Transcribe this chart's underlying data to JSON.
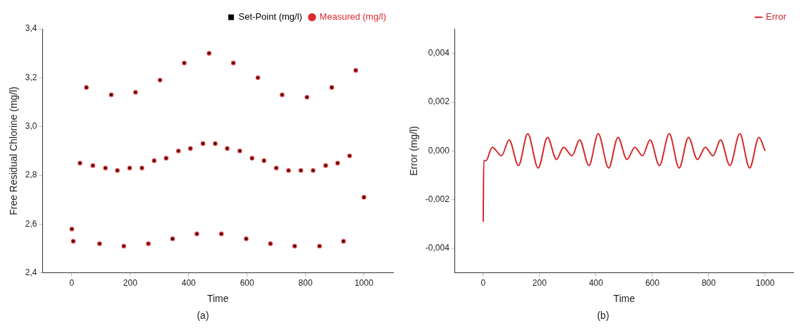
{
  "chart_data": [
    {
      "type": "scatter",
      "xlabel": "Time",
      "ylabel": "Free Residual Chlorine (mg/l)",
      "annotations": [
        "(a)"
      ],
      "legend": "top right",
      "grid": false,
      "xlim": [
        -100,
        1100
      ],
      "xticks": [
        0,
        200,
        400,
        600,
        800,
        1000
      ],
      "ylim": [
        2.4,
        3.4
      ],
      "yticks": [
        {
          "value": 2.4,
          "label": "2,4"
        },
        {
          "value": 2.6,
          "label": "2,6"
        },
        {
          "value": 2.8,
          "label": "2,8"
        },
        {
          "value": 3.0,
          "label": "3,0"
        },
        {
          "value": 3.2,
          "label": "3,2"
        },
        {
          "value": 3.4,
          "label": "3,4"
        }
      ],
      "series": [
        {
          "name": "Set-Point (mg/l)",
          "color": "#000000",
          "marker": "square",
          "x": [
            0,
            5,
            28,
            50,
            72,
            95,
            115,
            135,
            156,
            178,
            198,
            218,
            240,
            262,
            282,
            302,
            323,
            345,
            365,
            385,
            406,
            428,
            449,
            470,
            491,
            512,
            532,
            553,
            575,
            597,
            617,
            637,
            658,
            680,
            700,
            720,
            742,
            763,
            784,
            805,
            826,
            848,
            869,
            890,
            910,
            930,
            951,
            972,
            1000
          ],
          "values": [
            2.58,
            2.53,
            2.85,
            3.16,
            2.84,
            2.52,
            2.83,
            3.13,
            2.82,
            2.51,
            2.83,
            3.14,
            2.83,
            2.52,
            2.86,
            3.19,
            2.87,
            2.54,
            2.9,
            3.26,
            2.91,
            2.56,
            2.93,
            3.3,
            2.93,
            2.56,
            2.91,
            3.26,
            2.9,
            2.54,
            2.87,
            3.2,
            2.86,
            2.52,
            2.83,
            3.13,
            2.82,
            2.51,
            2.82,
            3.12,
            2.82,
            2.51,
            2.84,
            3.16,
            2.85,
            2.53,
            2.88,
            3.23,
            2.71
          ]
        },
        {
          "name": "Measured (mg/l)",
          "color": "#e0282d",
          "marker": "circle",
          "x": [
            0,
            5,
            28,
            50,
            72,
            95,
            115,
            135,
            156,
            178,
            198,
            218,
            240,
            262,
            282,
            302,
            323,
            345,
            365,
            385,
            406,
            428,
            449,
            470,
            491,
            512,
            532,
            553,
            575,
            597,
            617,
            637,
            658,
            680,
            700,
            720,
            742,
            763,
            784,
            805,
            826,
            848,
            869,
            890,
            910,
            930,
            951,
            972,
            1000
          ],
          "values": [
            2.58,
            2.53,
            2.85,
            3.16,
            2.84,
            2.52,
            2.83,
            3.13,
            2.82,
            2.51,
            2.83,
            3.14,
            2.83,
            2.52,
            2.86,
            3.19,
            2.87,
            2.54,
            2.9,
            3.26,
            2.91,
            2.56,
            2.93,
            3.3,
            2.93,
            2.56,
            2.91,
            3.26,
            2.9,
            2.54,
            2.87,
            3.2,
            2.86,
            2.52,
            2.83,
            3.13,
            2.82,
            2.51,
            2.82,
            3.12,
            2.82,
            2.51,
            2.84,
            3.16,
            2.85,
            2.53,
            2.88,
            3.23,
            2.71
          ]
        }
      ]
    },
    {
      "type": "line",
      "xlabel": "Time",
      "ylabel": "Error (mg/l)",
      "annotations": [
        "(b)"
      ],
      "legend": "top right",
      "grid": false,
      "marker": "none",
      "xlim": [
        -100,
        1100
      ],
      "xticks": [
        0,
        200,
        400,
        600,
        800,
        1000
      ],
      "ylim": [
        -0.005,
        0.005
      ],
      "yticks": [
        {
          "value": -0.004,
          "label": "-0,004"
        },
        {
          "value": -0.002,
          "label": "-0,002"
        },
        {
          "value": 0,
          "label": "0,000"
        },
        {
          "value": 0.002,
          "label": "0,002"
        },
        {
          "value": 0.004,
          "label": "0,004"
        }
      ],
      "series": [
        {
          "name": "Error",
          "color": "#d62728",
          "x": [
            0,
            2,
            10,
            32,
            65,
            92,
            125,
            158,
            195,
            228,
            260,
            285,
            315,
            342,
            375,
            408,
            445,
            478,
            510,
            538,
            565,
            592,
            625,
            660,
            695,
            728,
            760,
            788,
            815,
            842,
            875,
            910,
            945,
            978,
            1000
          ],
          "values": [
            -0.0029,
            -0.0004,
            -0.0004,
            0.00015,
            -0.0002,
            0.00045,
            -0.0006,
            0.0007,
            -0.0007,
            0.00055,
            -0.00035,
            0.00015,
            -0.0002,
            0.00045,
            -0.0006,
            0.0007,
            -0.0007,
            0.00055,
            -0.00035,
            0.00015,
            -0.0002,
            0.00045,
            -0.0006,
            0.0007,
            -0.0007,
            0.00055,
            -0.00035,
            0.00015,
            -0.0002,
            0.00045,
            -0.0006,
            0.0007,
            -0.0007,
            0.00055,
            0
          ]
        }
      ]
    }
  ]
}
